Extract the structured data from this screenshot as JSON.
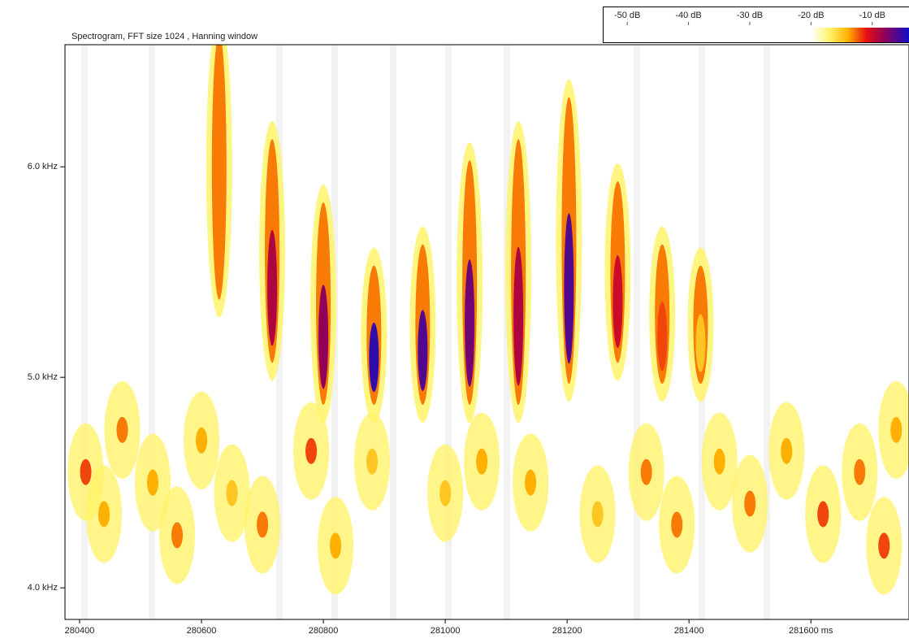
{
  "chart_data": {
    "type": "spectrogram",
    "title": "Spectrogram, FFT size 1024 , Hanning window",
    "xlim": [
      280376,
      281761
    ],
    "xticks": [
      280400,
      280600,
      280800,
      281000,
      281200,
      281400,
      {
        "value": 281600,
        "label": "281600 ms"
      }
    ],
    "ylim": [
      3.85,
      6.58
    ],
    "yticks": [
      {
        "value": 4,
        "label": "4.0 kHz"
      },
      {
        "value": 5,
        "label": "5.0 kHz"
      },
      {
        "value": 6,
        "label": "6.0 kHz"
      }
    ],
    "clim": [
      -54,
      -4
    ],
    "cticks": [
      {
        "value": -50,
        "label": "-50 dB"
      },
      {
        "value": -40,
        "label": "-40 dB"
      },
      {
        "value": -30,
        "label": "-30 dB"
      },
      {
        "value": -20,
        "label": "-20 dB"
      },
      {
        "value": -10,
        "label": "-10 dB"
      }
    ],
    "colormap": [
      {
        "value": -20,
        "color": "#ffffff"
      },
      {
        "value": -17,
        "color": "#fff36a"
      },
      {
        "value": -14,
        "color": "#ffb000"
      },
      {
        "value": -11,
        "color": "#e81010"
      },
      {
        "value": -8,
        "color": "#90005a"
      },
      {
        "value": -4,
        "color": "#1010c8"
      }
    ],
    "events": [
      {
        "time": 280629,
        "f_low": 5.4,
        "f_high": 6.6,
        "level": -13
      },
      {
        "time": 280716,
        "f_low": 5.1,
        "f_high": 6.1,
        "level": -9
      },
      {
        "time": 280800,
        "f_low": 4.9,
        "f_high": 5.8,
        "level": -8
      },
      {
        "time": 280883,
        "f_low": 4.9,
        "f_high": 5.5,
        "level": -5
      },
      {
        "time": 280963,
        "f_low": 4.9,
        "f_high": 5.6,
        "level": -6
      },
      {
        "time": 281040,
        "f_low": 4.9,
        "f_high": 6.0,
        "level": -7
      },
      {
        "time": 281120,
        "f_low": 4.9,
        "f_high": 6.1,
        "level": -9
      },
      {
        "time": 281203,
        "f_low": 5.0,
        "f_high": 6.3,
        "level": -6
      },
      {
        "time": 281283,
        "f_low": 5.1,
        "f_high": 5.9,
        "level": -10
      },
      {
        "time": 281356,
        "f_low": 5.0,
        "f_high": 5.6,
        "level": -12
      },
      {
        "time": 281419,
        "f_low": 5.0,
        "f_high": 5.5,
        "level": -15
      }
    ],
    "patches": [
      {
        "time": 280410,
        "freq": 4.55,
        "level": -12
      },
      {
        "time": 280440,
        "freq": 4.35,
        "level": -14
      },
      {
        "time": 280470,
        "freq": 4.75,
        "level": -13
      },
      {
        "time": 280520,
        "freq": 4.5,
        "level": -14
      },
      {
        "time": 280560,
        "freq": 4.25,
        "level": -13
      },
      {
        "time": 280600,
        "freq": 4.7,
        "level": -14
      },
      {
        "time": 280650,
        "freq": 4.45,
        "level": -15
      },
      {
        "time": 280700,
        "freq": 4.3,
        "level": -13
      },
      {
        "time": 280780,
        "freq": 4.65,
        "level": -12
      },
      {
        "time": 280820,
        "freq": 4.2,
        "level": -14
      },
      {
        "time": 280880,
        "freq": 4.6,
        "level": -15
      },
      {
        "time": 281000,
        "freq": 4.45,
        "level": -15
      },
      {
        "time": 281060,
        "freq": 4.6,
        "level": -14
      },
      {
        "time": 281140,
        "freq": 4.5,
        "level": -14
      },
      {
        "time": 281250,
        "freq": 4.35,
        "level": -15
      },
      {
        "time": 281330,
        "freq": 4.55,
        "level": -13
      },
      {
        "time": 281380,
        "freq": 4.3,
        "level": -13
      },
      {
        "time": 281450,
        "freq": 4.6,
        "level": -14
      },
      {
        "time": 281500,
        "freq": 4.4,
        "level": -13
      },
      {
        "time": 281560,
        "freq": 4.65,
        "level": -14
      },
      {
        "time": 281620,
        "freq": 4.35,
        "level": -12
      },
      {
        "time": 281680,
        "freq": 4.55,
        "level": -13
      },
      {
        "time": 281720,
        "freq": 4.2,
        "level": -12
      },
      {
        "time": 281740,
        "freq": 4.75,
        "level": -14
      }
    ]
  }
}
